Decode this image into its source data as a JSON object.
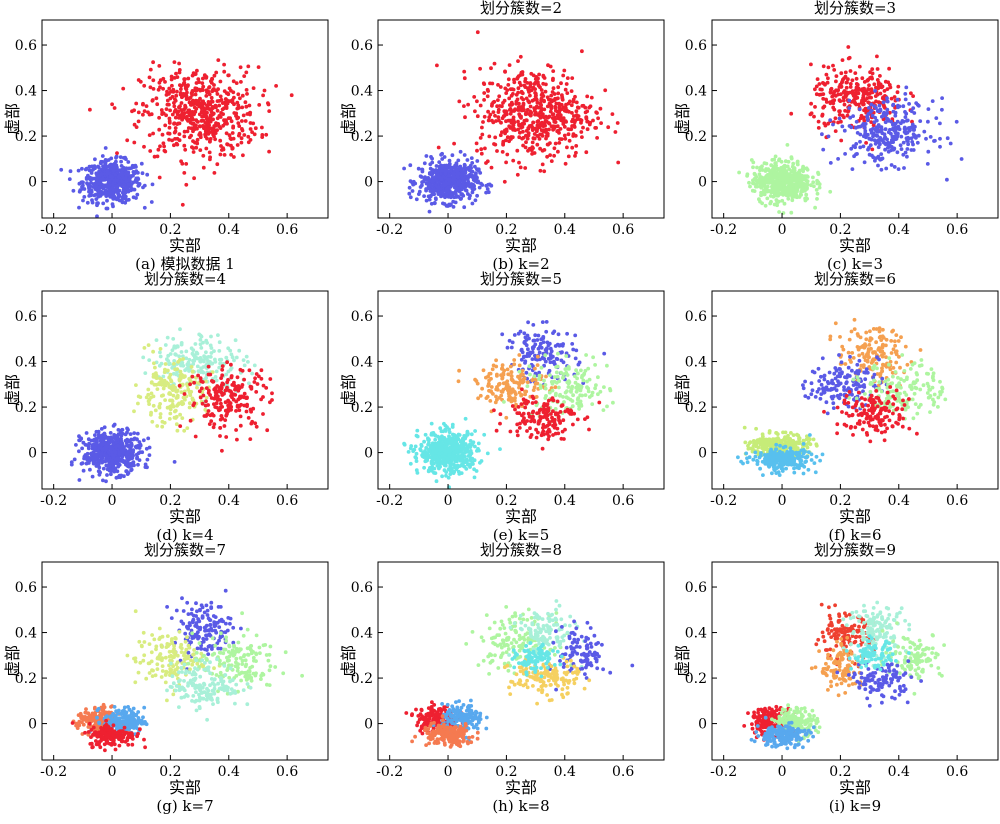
{
  "chart_data": [
    {
      "type": "scatter",
      "k": 0,
      "title": "",
      "xlabel": "实部",
      "ylabel": "虚部",
      "caption": "(a) 模拟数据 1",
      "xlim": [
        -0.24,
        0.74
      ],
      "ylim": [
        -0.16,
        0.71
      ],
      "xticks": [
        "-0.2",
        "0",
        "0.2",
        "0.4",
        "0.6"
      ],
      "yticks": [
        "0",
        "0.2",
        "0.4",
        "0.6"
      ],
      "series": [
        {
          "color": "#5a5ae6",
          "center": [
            0.0,
            0.0
          ],
          "spread": [
            0.05,
            0.045
          ],
          "count": 520
        },
        {
          "color": "#ee2030",
          "center": [
            0.3,
            0.3
          ],
          "spread": [
            0.1,
            0.1
          ],
          "count": 560
        }
      ]
    },
    {
      "type": "scatter",
      "k": 2,
      "title": "划分簇数=2",
      "xlabel": "实部",
      "ylabel": "虚部",
      "caption": "(b) k=2",
      "xlim": [
        -0.24,
        0.74
      ],
      "ylim": [
        -0.16,
        0.71
      ],
      "xticks": [
        "-0.2",
        "0",
        "0.2",
        "0.4",
        "0.6"
      ],
      "yticks": [
        "0",
        "0.2",
        "0.4",
        "0.6"
      ],
      "series": [
        {
          "color": "#5a5ae6",
          "center": [
            0.0,
            0.0
          ],
          "spread": [
            0.05,
            0.045
          ],
          "count": 520
        },
        {
          "color": "#ee2030",
          "center": [
            0.3,
            0.3
          ],
          "spread": [
            0.1,
            0.1
          ],
          "count": 560
        }
      ]
    },
    {
      "type": "scatter",
      "k": 3,
      "title": "划分簇数=3",
      "xlabel": "实部",
      "ylabel": "虚部",
      "caption": "(c) k=3",
      "xlim": [
        -0.24,
        0.74
      ],
      "ylim": [
        -0.16,
        0.71
      ],
      "xticks": [
        "-0.2",
        "0",
        "0.2",
        "0.4",
        "0.6"
      ],
      "yticks": [
        "0",
        "0.2",
        "0.4",
        "0.6"
      ],
      "series": [
        {
          "color": "#aef5a0",
          "center": [
            0.0,
            0.0
          ],
          "spread": [
            0.05,
            0.045
          ],
          "count": 520
        },
        {
          "color": "#ee2030",
          "center": [
            0.26,
            0.36
          ],
          "spread": [
            0.08,
            0.07
          ],
          "count": 290
        },
        {
          "color": "#5a5ae6",
          "center": [
            0.36,
            0.22
          ],
          "spread": [
            0.08,
            0.07
          ],
          "count": 290
        }
      ]
    },
    {
      "type": "scatter",
      "k": 4,
      "title": "划分簇数=4",
      "xlabel": "实部",
      "ylabel": "虚部",
      "caption": "(d) k=4",
      "xlim": [
        -0.24,
        0.74
      ],
      "ylim": [
        -0.16,
        0.71
      ],
      "xticks": [
        "-0.2",
        "0",
        "0.2",
        "0.4",
        "0.6"
      ],
      "yticks": [
        "0",
        "0.2",
        "0.4",
        "0.6"
      ],
      "series": [
        {
          "color": "#5a5ae6",
          "center": [
            0.0,
            0.0
          ],
          "spread": [
            0.05,
            0.045
          ],
          "count": 520
        },
        {
          "color": "#a8f0d8",
          "center": [
            0.3,
            0.4
          ],
          "spread": [
            0.08,
            0.06
          ],
          "count": 200
        },
        {
          "color": "#d8ec80",
          "center": [
            0.2,
            0.26
          ],
          "spread": [
            0.06,
            0.07
          ],
          "count": 190
        },
        {
          "color": "#ee2030",
          "center": [
            0.4,
            0.24
          ],
          "spread": [
            0.07,
            0.07
          ],
          "count": 200
        }
      ]
    },
    {
      "type": "scatter",
      "k": 5,
      "title": "划分簇数=5",
      "xlabel": "实部",
      "ylabel": "虚部",
      "caption": "(e) k=5",
      "xlim": [
        -0.24,
        0.74
      ],
      "ylim": [
        -0.16,
        0.71
      ],
      "xticks": [
        "-0.2",
        "0",
        "0.2",
        "0.4",
        "0.6"
      ],
      "yticks": [
        "0",
        "0.2",
        "0.4",
        "0.6"
      ],
      "series": [
        {
          "color": "#66e6e6",
          "center": [
            0.0,
            0.0
          ],
          "spread": [
            0.05,
            0.045
          ],
          "count": 520
        },
        {
          "color": "#5a5ae6",
          "center": [
            0.32,
            0.43
          ],
          "spread": [
            0.06,
            0.06
          ],
          "count": 150
        },
        {
          "color": "#f5a050",
          "center": [
            0.22,
            0.3
          ],
          "spread": [
            0.06,
            0.05
          ],
          "count": 150
        },
        {
          "color": "#aef5a0",
          "center": [
            0.41,
            0.28
          ],
          "spread": [
            0.07,
            0.06
          ],
          "count": 150
        },
        {
          "color": "#ee2030",
          "center": [
            0.32,
            0.16
          ],
          "spread": [
            0.06,
            0.05
          ],
          "count": 150
        }
      ]
    },
    {
      "type": "scatter",
      "k": 6,
      "title": "划分簇数=6",
      "xlabel": "实部",
      "ylabel": "虚部",
      "caption": "(f) k=6",
      "xlim": [
        -0.24,
        0.74
      ],
      "ylim": [
        -0.16,
        0.71
      ],
      "xticks": [
        "-0.2",
        "0",
        "0.2",
        "0.4",
        "0.6"
      ],
      "yticks": [
        "0",
        "0.2",
        "0.4",
        "0.6"
      ],
      "series": [
        {
          "color": "#c6ec78",
          "center": [
            -0.01,
            0.03
          ],
          "spread": [
            0.05,
            0.025
          ],
          "count": 260
        },
        {
          "color": "#58c0ee",
          "center": [
            0.0,
            -0.03
          ],
          "spread": [
            0.05,
            0.025
          ],
          "count": 260
        },
        {
          "color": "#f5a050",
          "center": [
            0.31,
            0.43
          ],
          "spread": [
            0.06,
            0.06
          ],
          "count": 150
        },
        {
          "color": "#5a5ae6",
          "center": [
            0.21,
            0.3
          ],
          "spread": [
            0.06,
            0.05
          ],
          "count": 150
        },
        {
          "color": "#aef5a0",
          "center": [
            0.42,
            0.28
          ],
          "spread": [
            0.07,
            0.06
          ],
          "count": 150
        },
        {
          "color": "#ee2030",
          "center": [
            0.32,
            0.17
          ],
          "spread": [
            0.06,
            0.05
          ],
          "count": 150
        }
      ]
    },
    {
      "type": "scatter",
      "k": 7,
      "title": "划分簇数=7",
      "xlabel": "实部",
      "ylabel": "虚部",
      "caption": "(g) k=7",
      "xlim": [
        -0.24,
        0.74
      ],
      "ylim": [
        -0.16,
        0.71
      ],
      "xticks": [
        "-0.2",
        "0",
        "0.2",
        "0.4",
        "0.6"
      ],
      "yticks": [
        "0",
        "0.2",
        "0.4",
        "0.6"
      ],
      "series": [
        {
          "color": "#f57a50",
          "center": [
            -0.05,
            0.01
          ],
          "spread": [
            0.035,
            0.03
          ],
          "count": 170
        },
        {
          "color": "#58a8ee",
          "center": [
            0.04,
            0.01
          ],
          "spread": [
            0.035,
            0.03
          ],
          "count": 170
        },
        {
          "color": "#ee2030",
          "center": [
            0.0,
            -0.05
          ],
          "spread": [
            0.04,
            0.025
          ],
          "count": 170
        },
        {
          "color": "#5a5ae6",
          "center": [
            0.31,
            0.42
          ],
          "spread": [
            0.05,
            0.06
          ],
          "count": 150
        },
        {
          "color": "#d8ec80",
          "center": [
            0.2,
            0.28
          ],
          "spread": [
            0.06,
            0.06
          ],
          "count": 150
        },
        {
          "color": "#aef5a0",
          "center": [
            0.42,
            0.27
          ],
          "spread": [
            0.07,
            0.06
          ],
          "count": 150
        },
        {
          "color": "#a8f0d8",
          "center": [
            0.32,
            0.17
          ],
          "spread": [
            0.06,
            0.05
          ],
          "count": 150
        }
      ]
    },
    {
      "type": "scatter",
      "k": 8,
      "title": "划分簇数=8",
      "xlabel": "实部",
      "ylabel": "虚部",
      "caption": "(h) k=8",
      "xlim": [
        -0.24,
        0.74
      ],
      "ylim": [
        -0.16,
        0.71
      ],
      "xticks": [
        "-0.2",
        "0",
        "0.2",
        "0.4",
        "0.6"
      ],
      "yticks": [
        "0",
        "0.2",
        "0.4",
        "0.6"
      ],
      "series": [
        {
          "color": "#ee2030",
          "center": [
            -0.04,
            0.02
          ],
          "spread": [
            0.035,
            0.03
          ],
          "count": 180
        },
        {
          "color": "#58a8ee",
          "center": [
            0.05,
            0.02
          ],
          "spread": [
            0.035,
            0.03
          ],
          "count": 170
        },
        {
          "color": "#f57a50",
          "center": [
            0.0,
            -0.05
          ],
          "spread": [
            0.045,
            0.025
          ],
          "count": 170
        },
        {
          "color": "#aef5a0",
          "center": [
            0.23,
            0.36
          ],
          "spread": [
            0.06,
            0.06
          ],
          "count": 140
        },
        {
          "color": "#a8f0d8",
          "center": [
            0.33,
            0.4
          ],
          "spread": [
            0.05,
            0.05
          ],
          "count": 120
        },
        {
          "color": "#5a5ae6",
          "center": [
            0.46,
            0.31
          ],
          "spread": [
            0.04,
            0.06
          ],
          "count": 100
        },
        {
          "color": "#f5d060",
          "center": [
            0.33,
            0.2
          ],
          "spread": [
            0.06,
            0.04
          ],
          "count": 140
        },
        {
          "color": "#66e6e6",
          "center": [
            0.3,
            0.28
          ],
          "spread": [
            0.035,
            0.03
          ],
          "count": 90
        }
      ]
    },
    {
      "type": "scatter",
      "k": 9,
      "title": "划分簇数=9",
      "xlabel": "实部",
      "ylabel": "虚部",
      "caption": "(i) k=9",
      "xlim": [
        -0.24,
        0.74
      ],
      "ylim": [
        -0.16,
        0.71
      ],
      "xticks": [
        "-0.2",
        "0",
        "0.2",
        "0.4",
        "0.6"
      ],
      "yticks": [
        "0",
        "0.2",
        "0.4",
        "0.6"
      ],
      "series": [
        {
          "color": "#ee2030",
          "center": [
            -0.04,
            0.01
          ],
          "spread": [
            0.035,
            0.03
          ],
          "count": 180
        },
        {
          "color": "#aef5a0",
          "center": [
            0.05,
            0.01
          ],
          "spread": [
            0.035,
            0.03
          ],
          "count": 160
        },
        {
          "color": "#58a8ee",
          "center": [
            0.0,
            -0.05
          ],
          "spread": [
            0.045,
            0.025
          ],
          "count": 170
        },
        {
          "color": "#ee4030",
          "center": [
            0.21,
            0.38
          ],
          "spread": [
            0.05,
            0.05
          ],
          "count": 120
        },
        {
          "color": "#a8f0d8",
          "center": [
            0.33,
            0.42
          ],
          "spread": [
            0.05,
            0.05
          ],
          "count": 130
        },
        {
          "color": "#aef5a0",
          "center": [
            0.45,
            0.3
          ],
          "spread": [
            0.05,
            0.05
          ],
          "count": 110
        },
        {
          "color": "#f5a050",
          "center": [
            0.21,
            0.24
          ],
          "spread": [
            0.04,
            0.05
          ],
          "count": 110
        },
        {
          "color": "#5a5ae6",
          "center": [
            0.34,
            0.19
          ],
          "spread": [
            0.05,
            0.04
          ],
          "count": 110
        },
        {
          "color": "#66e6e6",
          "center": [
            0.31,
            0.3
          ],
          "spread": [
            0.035,
            0.03
          ],
          "count": 90
        }
      ]
    }
  ]
}
